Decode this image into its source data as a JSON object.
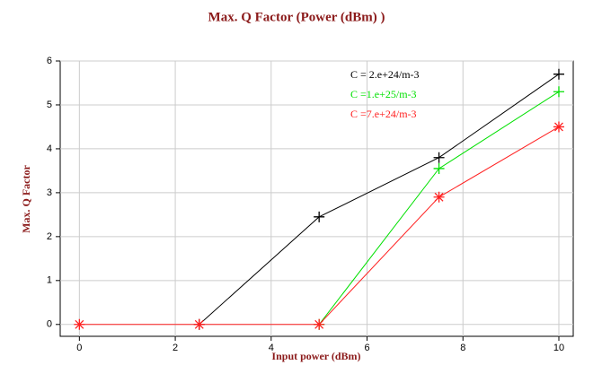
{
  "chart_data": {
    "type": "line",
    "title": "Max. Q Factor (Power (dBm) )",
    "xlabel": "Input power (dBm)",
    "ylabel": "Max. Q Factor",
    "x": [
      0,
      2.5,
      5,
      7.5,
      10
    ],
    "series": [
      {
        "name": "C = 2.e+24/m-3",
        "color": "#000000",
        "marker": "plus",
        "values": [
          null,
          0,
          2.45,
          3.8,
          5.7
        ]
      },
      {
        "name": "C =1.e+25/m-3",
        "color": "#00e000",
        "marker": "plus",
        "values": [
          null,
          null,
          0,
          3.55,
          5.3
        ]
      },
      {
        "name": "C =7.e+24/m-3",
        "color": "#ff2020",
        "marker": "star",
        "values": [
          0,
          0,
          0,
          2.9,
          4.5
        ]
      }
    ],
    "xlim": [
      -0.4,
      10.3
    ],
    "xticks": [
      0,
      2,
      4,
      6,
      8,
      10
    ],
    "ylim": [
      -0.27,
      6
    ],
    "yticks": [
      0,
      1,
      2,
      3,
      4,
      5,
      6
    ],
    "grid": true
  }
}
